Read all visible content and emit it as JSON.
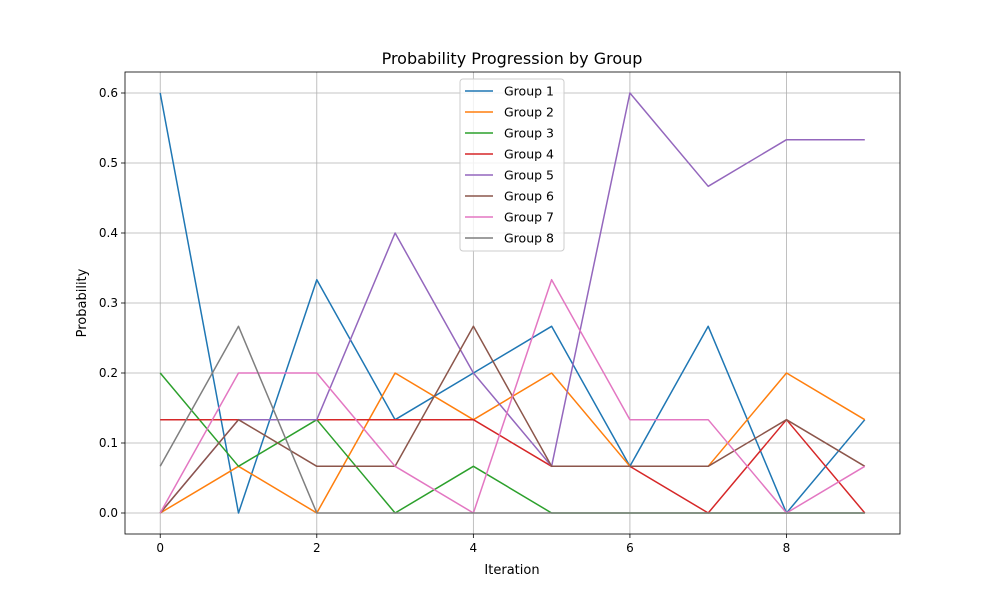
{
  "chart_data": {
    "type": "line",
    "title": "Probability Progression by Group",
    "xlabel": "Iteration",
    "ylabel": "Probability",
    "xlim": [
      -0.45,
      9.45
    ],
    "ylim": [
      -0.03,
      0.63
    ],
    "x_ticks": [
      0,
      2,
      4,
      6,
      8
    ],
    "x_tick_labels": [
      "0",
      "2",
      "4",
      "6",
      "8"
    ],
    "y_ticks": [
      0.0,
      0.1,
      0.2,
      0.3,
      0.4,
      0.5,
      0.6
    ],
    "y_tick_labels": [
      "0.0",
      "0.1",
      "0.2",
      "0.3",
      "0.4",
      "0.5",
      "0.6"
    ],
    "grid": true,
    "legend_position": "upper center",
    "x": [
      0,
      1,
      2,
      3,
      4,
      5,
      6,
      7,
      8,
      9
    ],
    "series": [
      {
        "name": "Group 1",
        "color": "#1f77b4",
        "values": [
          0.6,
          0.0,
          0.3333,
          0.1333,
          0.2,
          0.2667,
          0.0667,
          0.2667,
          0.0,
          0.1333
        ]
      },
      {
        "name": "Group 2",
        "color": "#ff7f0e",
        "values": [
          0.0,
          0.0667,
          0.0,
          0.2,
          0.1333,
          0.2,
          0.0667,
          0.0667,
          0.2,
          0.1333
        ]
      },
      {
        "name": "Group 3",
        "color": "#2ca02c",
        "values": [
          0.2,
          0.0667,
          0.1333,
          0.0,
          0.0667,
          0.0,
          0.0,
          0.0,
          0.0,
          0.0
        ]
      },
      {
        "name": "Group 4",
        "color": "#d62728",
        "values": [
          0.1333,
          0.1333,
          0.1333,
          0.1333,
          0.1333,
          0.0667,
          0.0667,
          0.0,
          0.1333,
          0.0
        ]
      },
      {
        "name": "Group 5",
        "color": "#9467bd",
        "values": [
          0.0,
          0.1333,
          0.1333,
          0.4,
          0.2,
          0.0667,
          0.6,
          0.4667,
          0.5333,
          0.5333
        ]
      },
      {
        "name": "Group 6",
        "color": "#8c564b",
        "values": [
          0.0,
          0.1333,
          0.0667,
          0.0667,
          0.2667,
          0.0667,
          0.0667,
          0.0667,
          0.1333,
          0.0667
        ]
      },
      {
        "name": "Group 7",
        "color": "#e377c2",
        "values": [
          0.0,
          0.2,
          0.2,
          0.0667,
          0.0,
          0.3333,
          0.1333,
          0.1333,
          0.0,
          0.0667
        ]
      },
      {
        "name": "Group 8",
        "color": "#7f7f7f",
        "values": [
          0.0667,
          0.2667,
          0.0,
          0.0,
          0.0,
          0.0,
          0.0,
          0.0,
          0.0,
          0.0
        ]
      }
    ]
  }
}
